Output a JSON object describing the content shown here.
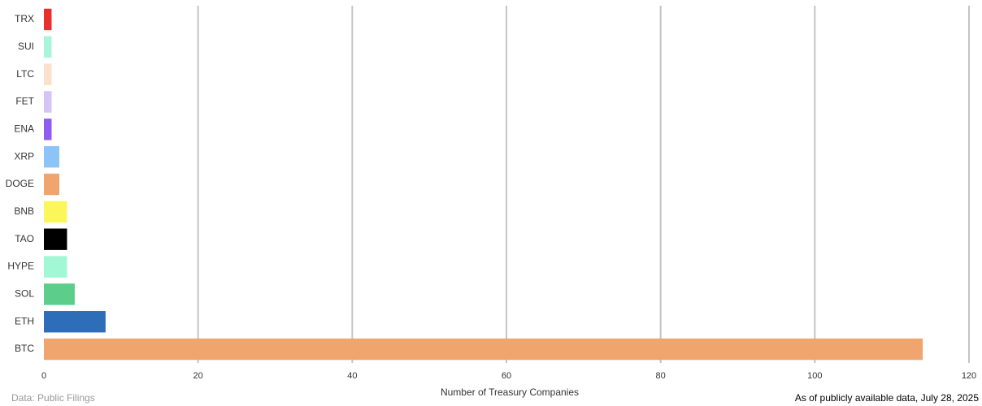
{
  "chart_data": {
    "type": "bar",
    "orientation": "horizontal",
    "categories": [
      "TRX",
      "SUI",
      "LTC",
      "FET",
      "ENA",
      "XRP",
      "DOGE",
      "BNB",
      "TAO",
      "HYPE",
      "SOL",
      "ETH",
      "BTC"
    ],
    "values": [
      1,
      1,
      1,
      1,
      1,
      2,
      2,
      3,
      3,
      3,
      4,
      8,
      114
    ],
    "colors": [
      "#e8302d",
      "#a8f5dc",
      "#fbe0cc",
      "#d4c4f7",
      "#8e5cf0",
      "#8cc4f8",
      "#f0a46e",
      "#fbf75a",
      "#000000",
      "#a2f8d4",
      "#5ccd8b",
      "#2e6db7",
      "#f0a46e"
    ],
    "xlim": [
      0,
      120
    ],
    "xticks": [
      0,
      20,
      40,
      60,
      80,
      100,
      120
    ],
    "grid": true,
    "xlabel": "Number of Treasury Companies",
    "source": "Data: Public Filings",
    "note": "As of publicly available data, July 28, 2025"
  }
}
